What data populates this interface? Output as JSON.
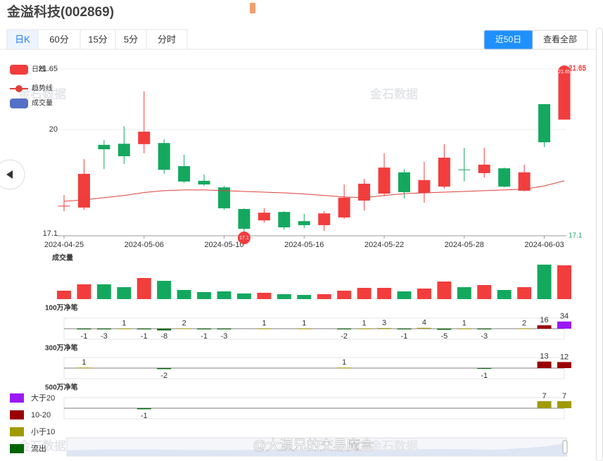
{
  "header": {
    "title": "金溢科技(002869)"
  },
  "tabs": [
    "日K",
    "60分",
    "15分",
    "5分",
    "分时"
  ],
  "range_buttons": [
    "近50日",
    "查看全部"
  ],
  "watermark": "金石数据",
  "credit": "@大湿兄的交易魔盒",
  "color_legend": [
    {
      "label": "大于20",
      "color": "#9b19f5",
      "range": [
        20,
        null
      ]
    },
    {
      "label": "10-20",
      "color": "#990000",
      "range": [
        10,
        20
      ]
    },
    {
      "label": "小于10",
      "color": "#a09a00",
      "range": [
        0,
        10
      ]
    },
    {
      "label": "流出",
      "color": "#006400",
      "range": [
        null,
        0
      ]
    }
  ],
  "chart_data": [
    {
      "type": "candlestick",
      "categories": [
        "2024-04-25",
        null,
        null,
        null,
        "2024-05-06",
        null,
        null,
        null,
        "2024-05-10",
        null,
        null,
        null,
        "2024-05-16",
        null,
        null,
        null,
        "2024-05-22",
        null,
        null,
        null,
        "2024-05-28",
        null,
        null,
        null,
        "2024-06-03",
        null
      ],
      "series": [
        {
          "name": "日线",
          "color": "#f23d3d",
          "down_color": "#14a85f",
          "open": [
            17.9,
            17.87,
            19.58,
            19.61,
            19.6,
            19.63,
            19.0,
            18.6,
            18.42,
            17.83,
            17.52,
            17.75,
            17.5,
            17.39,
            17.6,
            18.06,
            18.25,
            18.83,
            18.27,
            18.44,
            18.91,
            18.81,
            18.94,
            18.33,
            20.69,
            20.27
          ],
          "high": [
            18.21,
            19.19,
            19.71,
            20.09,
            21.04,
            19.73,
            19.31,
            18.77,
            18.46,
            17.85,
            17.85,
            17.77,
            17.7,
            17.77,
            18.5,
            18.65,
            19.35,
            18.92,
            19.12,
            19.6,
            19.5,
            19.5,
            18.96,
            19.04,
            20.69,
            21.65
          ],
          "low": [
            17.77,
            17.81,
            18.92,
            19.06,
            19.35,
            18.79,
            18.54,
            18.46,
            17.81,
            17.1,
            17.46,
            17.27,
            17.31,
            17.23,
            17.56,
            17.79,
            18.18,
            18.12,
            18.0,
            18.39,
            18.58,
            18.69,
            18.42,
            18.31,
            19.52,
            20.27
          ],
          "close": [
            17.92,
            18.79,
            19.46,
            19.27,
            19.94,
            18.9,
            18.58,
            18.5,
            17.85,
            17.29,
            17.73,
            17.33,
            17.39,
            17.71,
            18.14,
            18.52,
            18.96,
            18.29,
            18.62,
            19.23,
            18.9,
            19.04,
            18.44,
            18.83,
            19.65,
            21.65
          ]
        },
        {
          "name": "趋势线",
          "type": "line",
          "color": "#e0403a",
          "values": [
            18.04,
            18.08,
            18.14,
            18.2,
            18.28,
            18.33,
            18.35,
            18.35,
            18.33,
            18.31,
            18.29,
            18.27,
            18.24,
            18.2,
            18.16,
            18.14,
            18.2,
            18.25,
            18.27,
            18.29,
            18.31,
            18.33,
            18.35,
            18.37,
            18.46,
            18.6
          ]
        }
      ],
      "ylim": [
        17.1,
        21.65
      ],
      "yticks": [
        17.1,
        20,
        21.65
      ]
    },
    {
      "type": "bar",
      "title": "成交量",
      "color": "#5470c6",
      "values": [
        12,
        21,
        21,
        17,
        30,
        26,
        13,
        10,
        11,
        8,
        9,
        7,
        6,
        7,
        12,
        16,
        16,
        11,
        15,
        25,
        17,
        20,
        13,
        17,
        49,
        48
      ],
      "ylim": [
        0,
        50
      ]
    },
    {
      "type": "bar",
      "title": "100万净笔",
      "values": [
        null,
        -1,
        -3,
        1,
        -1,
        -8,
        2,
        -1,
        -3,
        null,
        1,
        null,
        1,
        null,
        -2,
        1,
        3,
        -1,
        4,
        -5,
        1,
        -3,
        null,
        2,
        16,
        34
      ],
      "ylim": [
        -50,
        50
      ]
    },
    {
      "type": "bar",
      "title": "300万净笔",
      "values": [
        null,
        1,
        null,
        null,
        null,
        -2,
        null,
        null,
        null,
        null,
        null,
        null,
        null,
        null,
        1,
        null,
        null,
        null,
        null,
        null,
        null,
        -1,
        null,
        null,
        13,
        12
      ],
      "ylim": [
        -21,
        21
      ]
    },
    {
      "type": "bar",
      "title": "500万净笔",
      "values": [
        null,
        null,
        null,
        null,
        -1,
        null,
        null,
        null,
        null,
        null,
        null,
        null,
        null,
        null,
        null,
        null,
        null,
        null,
        null,
        null,
        null,
        null,
        null,
        null,
        7,
        7
      ],
      "ylim": [
        -10.5,
        10.5
      ]
    }
  ]
}
